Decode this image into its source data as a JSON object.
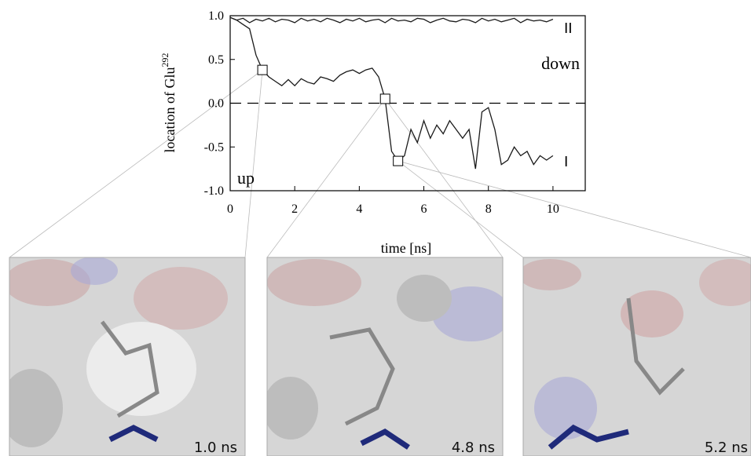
{
  "chart_data": {
    "type": "line",
    "xlabel": "time [ns]",
    "ylabel": "location of Glu",
    "ylabel_sup": "292",
    "x": [
      0,
      0.2,
      0.4,
      0.6,
      0.8,
      1.0,
      1.2,
      1.4,
      1.6,
      1.8,
      2.0,
      2.2,
      2.4,
      2.6,
      2.8,
      3.0,
      3.2,
      3.4,
      3.6,
      3.8,
      4.0,
      4.2,
      4.4,
      4.6,
      4.8,
      5.0,
      5.2,
      5.4,
      5.6,
      5.8,
      6.0,
      6.2,
      6.4,
      6.6,
      6.8,
      7.0,
      7.2,
      7.4,
      7.6,
      7.8,
      8.0,
      8.2,
      8.4,
      8.6,
      8.8,
      9.0,
      9.2,
      9.4,
      9.6,
      9.8,
      10.0
    ],
    "series": [
      {
        "name": "I",
        "color": "#1a1a1a",
        "values": [
          0.98,
          0.95,
          0.9,
          0.85,
          0.55,
          0.38,
          0.3,
          0.25,
          0.2,
          0.27,
          0.2,
          0.28,
          0.24,
          0.22,
          0.3,
          0.28,
          0.25,
          0.32,
          0.36,
          0.38,
          0.34,
          0.38,
          0.4,
          0.3,
          0.05,
          -0.55,
          -0.66,
          -0.6,
          -0.3,
          -0.45,
          -0.2,
          -0.4,
          -0.25,
          -0.35,
          -0.2,
          -0.3,
          -0.4,
          -0.3,
          -0.75,
          -0.1,
          -0.05,
          -0.3,
          -0.7,
          -0.65,
          -0.5,
          -0.6,
          -0.55,
          -0.7,
          -0.6,
          -0.65,
          -0.6
        ]
      },
      {
        "name": "II",
        "color": "#1a1a1a",
        "values": [
          0.98,
          0.95,
          0.97,
          0.92,
          0.96,
          0.94,
          0.97,
          0.93,
          0.96,
          0.95,
          0.92,
          0.97,
          0.94,
          0.96,
          0.93,
          0.97,
          0.95,
          0.92,
          0.96,
          0.94,
          0.97,
          0.93,
          0.95,
          0.96,
          0.92,
          0.97,
          0.94,
          0.95,
          0.93,
          0.97,
          0.96,
          0.92,
          0.95,
          0.97,
          0.94,
          0.93,
          0.96,
          0.95,
          0.92,
          0.97,
          0.94,
          0.96,
          0.93,
          0.95,
          0.97,
          0.92,
          0.96,
          0.94,
          0.95,
          0.93,
          0.96
        ]
      }
    ],
    "xlim": [
      0,
      11
    ],
    "ylim": [
      -1,
      1
    ],
    "xticks": [
      0,
      2,
      4,
      6,
      8,
      10
    ],
    "yticks": [
      {
        "value": 1,
        "label": "1.0"
      },
      {
        "value": 0.5,
        "label": "0.5"
      },
      {
        "value": 0,
        "label": "0.0"
      },
      {
        "value": -0.5,
        "label": "-0.5"
      },
      {
        "value": -1,
        "label": "-1.0"
      }
    ],
    "reference_line": 0,
    "annotations": [
      "II",
      "down",
      "I",
      "up"
    ],
    "markers": [
      {
        "x": 1.0,
        "y": 0.38
      },
      {
        "x": 4.8,
        "y": 0.05
      },
      {
        "x": 5.2,
        "y": -0.66
      }
    ],
    "panels": [
      {
        "label": "1.0 ns"
      },
      {
        "label": "4.8 ns"
      },
      {
        "label": "5.2 ns"
      }
    ]
  }
}
